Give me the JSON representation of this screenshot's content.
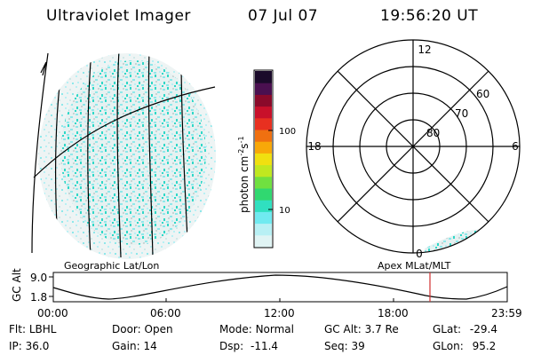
{
  "header": {
    "title": "Ultraviolet Imager",
    "date": "07 Jul 07",
    "time": "19:56:20 UT"
  },
  "colorbar": {
    "unit_label": "photon cm",
    "unit_sup1": "-2",
    "unit_mid": "s",
    "unit_sup2": "-1",
    "ticks": [
      "100",
      "10"
    ],
    "colors": [
      "#1a0a2a",
      "#4a1050",
      "#8a0a2a",
      "#c8102a",
      "#e83020",
      "#f07010",
      "#f8a808",
      "#f0e010",
      "#c0e820",
      "#70e040",
      "#30d870",
      "#30e0c0",
      "#70eaf0",
      "#b8f0f4",
      "#e0f4f4"
    ]
  },
  "polar_plot": {
    "mlt_labels": [
      "12",
      "6",
      "0",
      "18"
    ],
    "lat_labels": [
      "60",
      "70",
      "80"
    ]
  },
  "left_plot": {
    "label": "Geographic Lat/Lon"
  },
  "right_plot": {
    "label": "Apex MLat/MLT"
  },
  "altitude_panel": {
    "axis_label": "GC Alt",
    "y_max": "9.0",
    "y_min": "1.8",
    "time_ticks": [
      "00:00",
      "06:00",
      "12:00",
      "18:00",
      "23:59"
    ]
  },
  "info": [
    [
      {
        "key": "Flt:",
        "value": "LBHL"
      },
      {
        "key": "Door:",
        "value": "Open"
      },
      {
        "key": "Mode:",
        "value": "Normal"
      },
      {
        "key": "GC Alt:",
        "value": "3.7 Re"
      },
      {
        "key": "GLat:",
        "value": "-29.4"
      }
    ],
    [
      {
        "key": "IP:",
        "value": "36.0"
      },
      {
        "key": "Gain:",
        "value": "14"
      },
      {
        "key": "Dsp:",
        "value": "-11.4"
      },
      {
        "key": "Seq:",
        "value": "39"
      },
      {
        "key": "GLon:",
        "value": "95.2"
      }
    ]
  ]
}
